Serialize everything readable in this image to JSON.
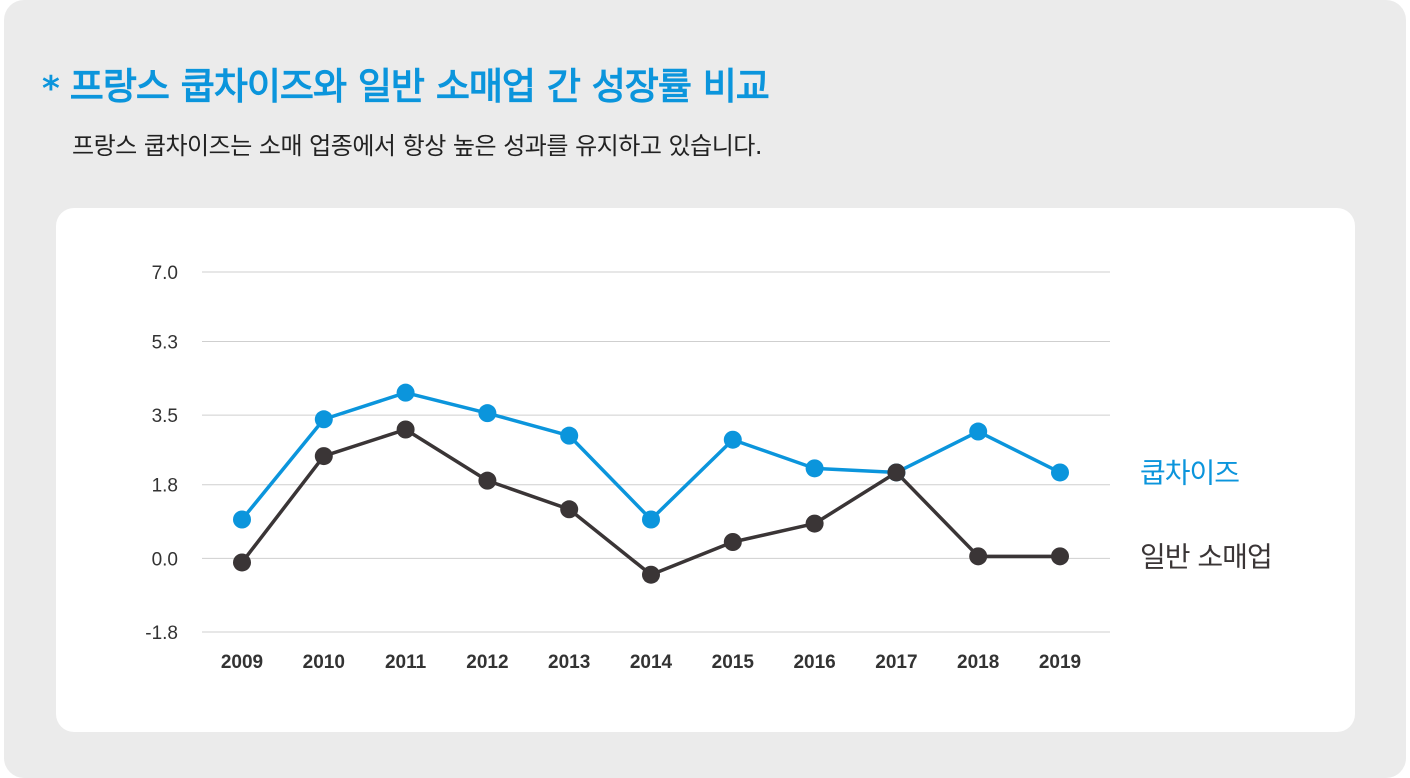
{
  "header": {
    "asterisk": "*",
    "title": "프랑스 쿱차이즈와 일반 소매업 간 성장률 비교",
    "subtitle": "프랑스 쿱차이즈는 소매 업종에서 항상 높은 성과를 유지하고 있습니다."
  },
  "colors": {
    "accent": "#0b95dc",
    "dark": "#3a3536",
    "grid": "#cfcfcf"
  },
  "chart_data": {
    "type": "line",
    "title": "",
    "xlabel": "",
    "ylabel": "",
    "categories": [
      "2009",
      "2010",
      "2011",
      "2012",
      "2013",
      "2014",
      "2015",
      "2016",
      "2017",
      "2018",
      "2019"
    ],
    "y_ticks": [
      "7.0",
      "5.3",
      "3.5",
      "1.8",
      "0.0",
      "-1.8"
    ],
    "ylim": [
      -1.8,
      7.0
    ],
    "grid": true,
    "legend_position": "right",
    "series": [
      {
        "name": "쿱차이즈",
        "color": "#0b95dc",
        "values": [
          0.95,
          3.4,
          4.05,
          3.55,
          3.0,
          0.95,
          2.9,
          2.2,
          2.1,
          3.1,
          2.1
        ]
      },
      {
        "name": "일반 소매업",
        "color": "#3a3536",
        "values": [
          -0.1,
          2.5,
          3.15,
          1.9,
          1.2,
          -0.4,
          0.4,
          0.85,
          2.1,
          0.05,
          0.05
        ]
      }
    ]
  }
}
